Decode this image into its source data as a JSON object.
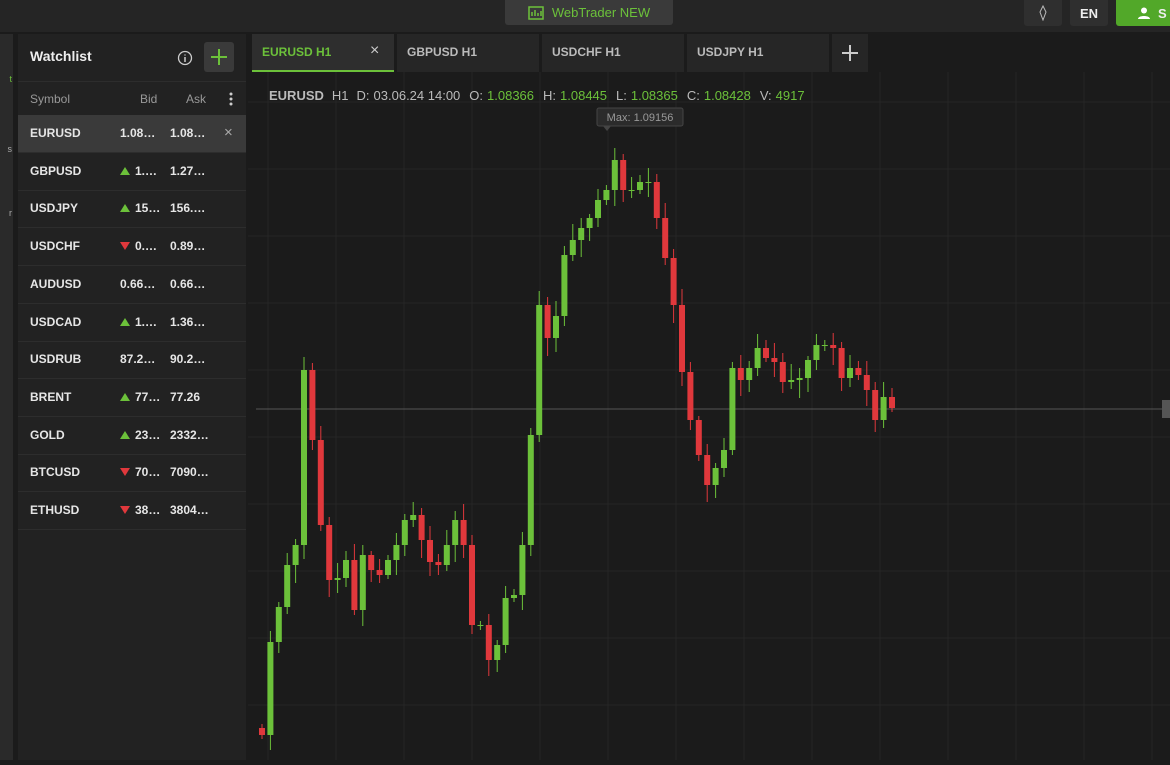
{
  "header": {
    "title": "WebTrader NEW",
    "language": "EN",
    "account_button": "S"
  },
  "left_rail": [
    "t",
    "s",
    "r"
  ],
  "watchlist": {
    "title": "Watchlist",
    "columns": [
      "Symbol",
      "Bid",
      "Ask"
    ],
    "selected": 0,
    "rows": [
      {
        "symbol": "EURUSD",
        "bid": "1.08…",
        "ask": "1.08…",
        "trend": "none"
      },
      {
        "symbol": "GBPUSD",
        "bid": "1.…",
        "ask": "1.27…",
        "trend": "up"
      },
      {
        "symbol": "USDJPY",
        "bid": "15…",
        "ask": "156.…",
        "trend": "up"
      },
      {
        "symbol": "USDCHF",
        "bid": "0.…",
        "ask": "0.89…",
        "trend": "down"
      },
      {
        "symbol": "AUDUSD",
        "bid": "0.66…",
        "ask": "0.66…",
        "trend": "none"
      },
      {
        "symbol": "USDCAD",
        "bid": "1.…",
        "ask": "1.36…",
        "trend": "up"
      },
      {
        "symbol": "USDRUB",
        "bid": "87.2…",
        "ask": "90.2…",
        "trend": "none"
      },
      {
        "symbol": "BRENT",
        "bid": "77…",
        "ask": "77.26",
        "trend": "up"
      },
      {
        "symbol": "GOLD",
        "bid": "23…",
        "ask": "2332…",
        "trend": "up"
      },
      {
        "symbol": "BTCUSD",
        "bid": "70…",
        "ask": "7090…",
        "trend": "down"
      },
      {
        "symbol": "ETHUSD",
        "bid": "38…",
        "ask": "3804…",
        "trend": "down"
      }
    ]
  },
  "tabs": {
    "active": 0,
    "items": [
      "EURUSD H1",
      "GBPUSD H1",
      "USDCHF H1",
      "USDJPY H1"
    ]
  },
  "chart_info": {
    "symbol": "EURUSD",
    "timeframe": "H1",
    "fields": [
      {
        "label": "D:",
        "value": "03.06.24 14:00"
      },
      {
        "label": "O:",
        "value": "1.08366"
      },
      {
        "label": "H:",
        "value": "1.08445"
      },
      {
        "label": "L:",
        "value": "1.08365"
      },
      {
        "label": "C:",
        "value": "1.08428"
      },
      {
        "label": "V:",
        "value": "4917"
      }
    ],
    "max_label": "Max: 1.09156"
  }
}
